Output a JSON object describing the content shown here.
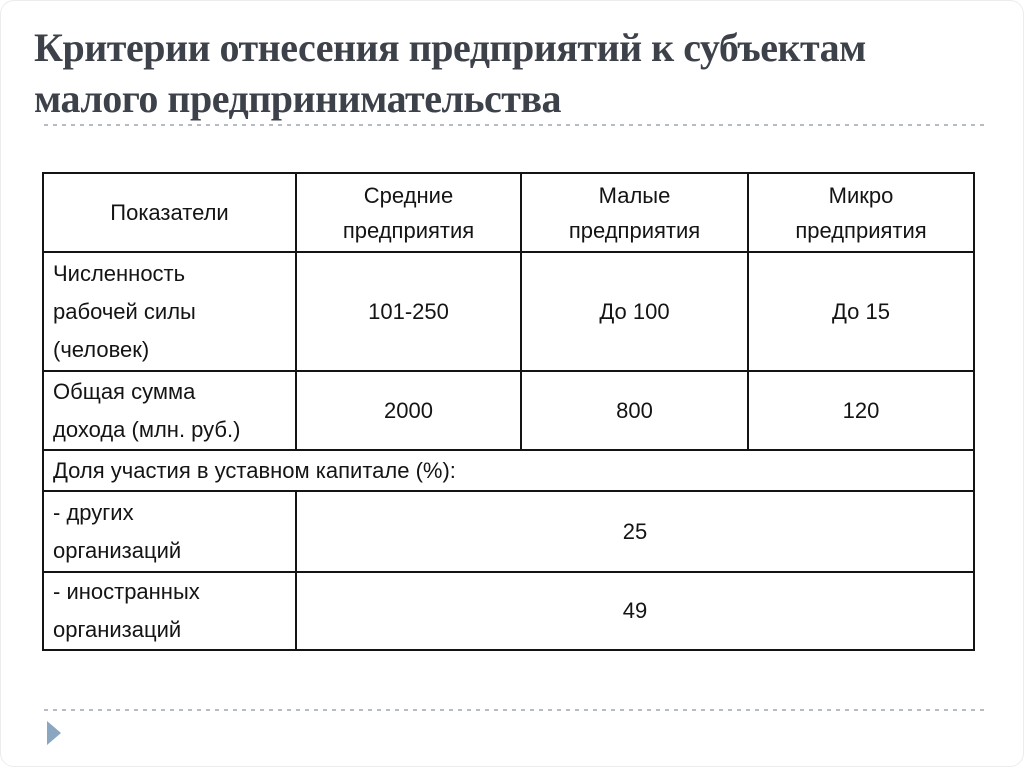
{
  "slide": {
    "title": "Критерии отнесения предприятий к субъектам\nмалого предпринимательства"
  },
  "table": {
    "headers": [
      "Показатели",
      "Средние\nпредприятия",
      "Малые\nпредприятия",
      "Микро\nпредприятия"
    ],
    "rows": [
      {
        "label": "Численность\nрабочей силы\n(человек)",
        "values": [
          "101-250",
          "До 100",
          "До 15"
        ]
      },
      {
        "label": "Общая сумма\nдохода (млн. руб.)",
        "values": [
          "2000",
          "800",
          "120"
        ]
      },
      {
        "section": "Доля участия в уставном капитале (%):"
      },
      {
        "label": "- других\nорганизаций",
        "merged_value": "25"
      },
      {
        "label": "- иностранных\nорганизаций",
        "merged_value": "49"
      }
    ]
  },
  "icons": {
    "bottom_left_marker": "play-triangle"
  },
  "colors": {
    "title_text": "#3d424a",
    "table_text": "#141414",
    "table_border": "#141414",
    "divider_dash": "#b6bcc6",
    "marker_accent": "#8ba6c1",
    "background": "#ffffff"
  }
}
